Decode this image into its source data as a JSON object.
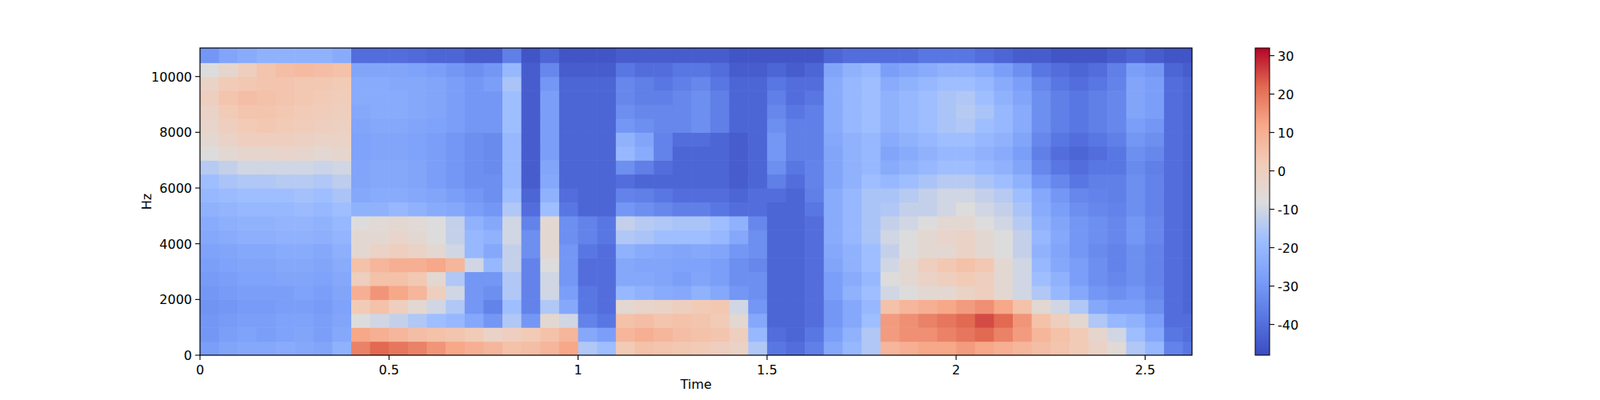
{
  "chart_data": {
    "type": "heatmap",
    "x_label": "Time",
    "y_label": "Hz",
    "color": "coolwarm",
    "xlim": [
      0,
      2.624
    ],
    "ylim": [
      0,
      11025
    ],
    "xticks": [
      0,
      0.5,
      1,
      1.5,
      2,
      2.5
    ],
    "yticks": [
      0,
      2000,
      4000,
      6000,
      8000,
      10000
    ],
    "colorbar_range": [
      -48,
      32
    ],
    "colorbar_ticks": [
      -40,
      -30,
      -20,
      -10,
      0,
      10,
      20,
      30
    ],
    "x_edges": [
      0,
      0.05,
      0.1,
      0.15,
      0.2,
      0.25,
      0.3,
      0.35,
      0.4,
      0.45,
      0.5,
      0.55,
      0.6,
      0.65,
      0.7,
      0.75,
      0.8,
      0.85,
      0.9,
      0.95,
      1,
      1.05,
      1.1,
      1.15,
      1.2,
      1.25,
      1.3,
      1.35,
      1.4,
      1.45,
      1.5,
      1.55,
      1.6,
      1.65,
      1.7,
      1.75,
      1.8,
      1.85,
      1.9,
      1.95,
      2,
      2.05,
      2.1,
      2.15,
      2.2,
      2.25,
      2.3,
      2.35,
      2.4,
      2.45,
      2.5,
      2.55,
      2.6,
      2.624
    ],
    "y_edges": [
      0,
      500,
      1000,
      1500,
      2000,
      2500,
      3000,
      3500,
      4000,
      4500,
      5000,
      5500,
      6000,
      6500,
      7000,
      7500,
      8000,
      8500,
      9000,
      9500,
      10000,
      10500,
      11025
    ],
    "values": [
      [
        -28,
        -26,
        -25,
        -25,
        -24,
        -25,
        -26,
        -22,
        18,
        22,
        20,
        18,
        15,
        12,
        10,
        8,
        5,
        6,
        8,
        12,
        -15,
        -18,
        2,
        5,
        4,
        3,
        2,
        0,
        -2,
        -15,
        -38,
        -40,
        -36,
        -25,
        -20,
        -15,
        8,
        10,
        12,
        12,
        14,
        12,
        10,
        8,
        6,
        4,
        2,
        -2,
        -6,
        -15,
        -20,
        -35,
        -38
      ],
      [
        -30,
        -28,
        -27,
        -28,
        -27,
        -26,
        -28,
        -25,
        12,
        10,
        8,
        6,
        5,
        4,
        2,
        -2,
        0,
        2,
        5,
        8,
        -25,
        -28,
        8,
        10,
        8,
        6,
        5,
        4,
        0,
        -20,
        -40,
        -42,
        -38,
        -28,
        -22,
        -15,
        14,
        16,
        16,
        18,
        20,
        22,
        18,
        14,
        8,
        5,
        2,
        -4,
        -10,
        -18,
        -25,
        -38,
        -40
      ],
      [
        -30,
        -29,
        -28,
        -28,
        -27,
        -27,
        -28,
        -26,
        -8,
        -10,
        -12,
        -15,
        -18,
        -20,
        -25,
        -30,
        -15,
        -30,
        -5,
        -10,
        -35,
        -38,
        5,
        6,
        4,
        5,
        4,
        2,
        -5,
        -25,
        -42,
        -42,
        -40,
        -30,
        -25,
        -18,
        14,
        16,
        18,
        20,
        22,
        25,
        22,
        15,
        5,
        0,
        -5,
        -15,
        -20,
        -22,
        -28,
        -40,
        -40
      ],
      [
        -31,
        -30,
        -29,
        -29,
        -28,
        -28,
        -29,
        -27,
        2,
        5,
        0,
        -5,
        -10,
        -15,
        -30,
        -35,
        -18,
        -35,
        -15,
        -25,
        -38,
        -40,
        -5,
        -3,
        -2,
        0,
        2,
        3,
        -10,
        -30,
        -42,
        -42,
        -40,
        -30,
        -25,
        -20,
        5,
        8,
        10,
        12,
        14,
        16,
        12,
        5,
        -5,
        -10,
        -15,
        -25,
        -28,
        -28,
        -32,
        -40,
        -42
      ],
      [
        -30,
        -29,
        -28,
        -28,
        -28,
        -27,
        -28,
        -26,
        10,
        15,
        12,
        8,
        0,
        -10,
        -30,
        -32,
        -15,
        -35,
        -10,
        -28,
        -38,
        -40,
        -20,
        -22,
        -24,
        -25,
        -22,
        -25,
        -30,
        -32,
        -42,
        -42,
        -40,
        -28,
        -22,
        -18,
        -10,
        -8,
        -5,
        -5,
        -2,
        0,
        -5,
        -10,
        -15,
        -20,
        -25,
        -30,
        -32,
        -30,
        -34,
        -40,
        -42
      ],
      [
        -29,
        -28,
        -27,
        -27,
        -26,
        -26,
        -27,
        -25,
        0,
        5,
        5,
        3,
        -5,
        -15,
        -30,
        -30,
        -15,
        -35,
        -10,
        -30,
        -40,
        -40,
        -25,
        -25,
        -26,
        -28,
        -26,
        -28,
        -32,
        -32,
        -42,
        -42,
        -40,
        -28,
        -24,
        -20,
        -8,
        -5,
        -2,
        0,
        2,
        0,
        -5,
        -10,
        -18,
        -22,
        -28,
        -32,
        -34,
        -32,
        -35,
        -40,
        -42
      ],
      [
        -28,
        -27,
        -26,
        -26,
        -25,
        -25,
        -26,
        -24,
        5,
        8,
        10,
        10,
        12,
        8,
        -10,
        -20,
        -12,
        -35,
        -8,
        -30,
        -40,
        -40,
        -25,
        -26,
        -26,
        -27,
        -27,
        -28,
        -32,
        -34,
        -42,
        -42,
        -40,
        -26,
        -22,
        -18,
        -10,
        -5,
        0,
        3,
        5,
        3,
        -5,
        -10,
        -20,
        -25,
        -28,
        -32,
        -35,
        -32,
        -35,
        -40,
        -42
      ],
      [
        -27,
        -26,
        -25,
        -25,
        -24,
        -24,
        -25,
        -23,
        -5,
        -2,
        0,
        -2,
        -5,
        -10,
        -20,
        -25,
        -12,
        -32,
        -5,
        -30,
        -38,
        -40,
        -22,
        -24,
        -25,
        -26,
        -25,
        -26,
        -30,
        -32,
        -42,
        -42,
        -40,
        -25,
        -22,
        -18,
        -12,
        -8,
        -5,
        -5,
        -2,
        -5,
        -8,
        -12,
        -22,
        -26,
        -30,
        -33,
        -35,
        -32,
        -35,
        -40,
        -42
      ],
      [
        -25,
        -24,
        -23,
        -23,
        -22,
        -22,
        -23,
        -21,
        -5,
        -5,
        -3,
        -5,
        -8,
        -12,
        -20,
        -22,
        -10,
        -32,
        -5,
        -32,
        -35,
        -38,
        -15,
        -16,
        -18,
        -18,
        -18,
        -20,
        -25,
        -32,
        -42,
        -42,
        -40,
        -24,
        -20,
        -16,
        -10,
        -8,
        -5,
        -3,
        -2,
        -5,
        -8,
        -12,
        -20,
        -25,
        -30,
        -32,
        -34,
        -30,
        -34,
        -40,
        -42
      ],
      [
        -24,
        -23,
        -22,
        -22,
        -21,
        -21,
        -22,
        -20,
        -8,
        -6,
        -5,
        -6,
        -8,
        -12,
        -22,
        -25,
        -10,
        -35,
        -5,
        -32,
        -35,
        -38,
        -12,
        -14,
        -15,
        -16,
        -16,
        -18,
        -22,
        -34,
        -42,
        -42,
        -40,
        -24,
        -20,
        -16,
        -12,
        -10,
        -8,
        -5,
        -5,
        -8,
        -10,
        -14,
        -22,
        -26,
        -30,
        -32,
        -34,
        -30,
        -34,
        -40,
        -42
      ],
      [
        -22,
        -21,
        -20,
        -20,
        -20,
        -19,
        -20,
        -18,
        -22,
        -22,
        -20,
        -22,
        -24,
        -25,
        -28,
        -30,
        -15,
        -40,
        -18,
        -38,
        -42,
        -42,
        -30,
        -32,
        -34,
        -36,
        -36,
        -38,
        -40,
        -40,
        -42,
        -42,
        -38,
        -24,
        -20,
        -16,
        -15,
        -12,
        -12,
        -10,
        -8,
        -10,
        -12,
        -16,
        -24,
        -28,
        -32,
        -34,
        -35,
        -32,
        -35,
        -40,
        -42
      ],
      [
        -20,
        -19,
        -18,
        -18,
        -18,
        -17,
        -18,
        -16,
        -25,
        -24,
        -24,
        -25,
        -26,
        -28,
        -30,
        -32,
        -18,
        -42,
        -22,
        -40,
        -42,
        -42,
        -35,
        -36,
        -38,
        -40,
        -40,
        -40,
        -42,
        -40,
        -40,
        -42,
        -36,
        -24,
        -20,
        -16,
        -16,
        -14,
        -12,
        -10,
        -10,
        -12,
        -14,
        -18,
        -25,
        -30,
        -34,
        -35,
        -36,
        -32,
        -35,
        -40,
        -42
      ],
      [
        -18,
        -16,
        -15,
        -15,
        -14,
        -14,
        -15,
        -13,
        -26,
        -25,
        -25,
        -26,
        -28,
        -30,
        -32,
        -32,
        -20,
        -44,
        -25,
        -42,
        -42,
        -42,
        -40,
        -42,
        -42,
        -42,
        -42,
        -42,
        -44,
        -42,
        -36,
        -40,
        -35,
        -26,
        -22,
        -18,
        -20,
        -18,
        -16,
        -14,
        -14,
        -16,
        -18,
        -22,
        -30,
        -34,
        -38,
        -36,
        -36,
        -32,
        -35,
        -40,
        -42
      ],
      [
        -14,
        -12,
        -10,
        -10,
        -10,
        -10,
        -11,
        -10,
        -26,
        -25,
        -25,
        -26,
        -28,
        -30,
        -32,
        -33,
        -20,
        -44,
        -26,
        -42,
        -42,
        -42,
        -32,
        -36,
        -40,
        -42,
        -42,
        -42,
        -44,
        -42,
        -32,
        -38,
        -35,
        -26,
        -22,
        -20,
        -24,
        -22,
        -20,
        -18,
        -18,
        -20,
        -22,
        -26,
        -34,
        -38,
        -40,
        -38,
        -38,
        -33,
        -36,
        -40,
        -42
      ],
      [
        -8,
        -5,
        -4,
        -4,
        -3,
        -4,
        -5,
        -4,
        -27,
        -26,
        -26,
        -27,
        -28,
        -30,
        -32,
        -33,
        -20,
        -44,
        -28,
        -42,
        -42,
        -42,
        -20,
        -24,
        -35,
        -42,
        -42,
        -42,
        -44,
        -42,
        -30,
        -36,
        -36,
        -26,
        -22,
        -20,
        -26,
        -24,
        -22,
        -20,
        -20,
        -22,
        -24,
        -28,
        -36,
        -40,
        -42,
        -40,
        -38,
        -32,
        -34,
        -40,
        -42
      ],
      [
        -5,
        -2,
        0,
        0,
        0,
        -1,
        -2,
        -2,
        -27,
        -26,
        -26,
        -27,
        -28,
        -30,
        -32,
        -33,
        -20,
        -44,
        -28,
        -42,
        -42,
        -42,
        -22,
        -26,
        -35,
        -40,
        -40,
        -42,
        -44,
        -42,
        -30,
        -36,
        -36,
        -25,
        -22,
        -20,
        -24,
        -22,
        -20,
        -18,
        -18,
        -20,
        -22,
        -26,
        -34,
        -38,
        -40,
        -38,
        -36,
        -30,
        -32,
        -40,
        -42
      ],
      [
        -3,
        0,
        2,
        3,
        2,
        1,
        0,
        -1,
        -26,
        -25,
        -25,
        -26,
        -27,
        -28,
        -30,
        -30,
        -18,
        -44,
        -28,
        -42,
        -42,
        -42,
        -30,
        -32,
        -34,
        -34,
        -32,
        -36,
        -42,
        -42,
        -32,
        -36,
        -36,
        -24,
        -20,
        -18,
        -22,
        -20,
        -18,
        -16,
        -15,
        -18,
        -20,
        -24,
        -32,
        -36,
        -38,
        -36,
        -34,
        -28,
        -30,
        -40,
        -42
      ],
      [
        -2,
        2,
        4,
        4,
        3,
        2,
        1,
        0,
        -25,
        -24,
        -24,
        -25,
        -26,
        -28,
        -30,
        -30,
        -18,
        -44,
        -28,
        -42,
        -42,
        -42,
        -32,
        -34,
        -34,
        -34,
        -32,
        -36,
        -42,
        -42,
        -34,
        -38,
        -36,
        -24,
        -20,
        -18,
        -22,
        -20,
        -18,
        -16,
        -14,
        -16,
        -20,
        -24,
        -32,
        -36,
        -38,
        -36,
        -34,
        -26,
        -28,
        -40,
        -42
      ],
      [
        0,
        4,
        6,
        5,
        4,
        3,
        2,
        1,
        -24,
        -24,
        -24,
        -25,
        -26,
        -28,
        -30,
        -30,
        -18,
        -44,
        -28,
        -42,
        -42,
        -42,
        -34,
        -36,
        -36,
        -34,
        -32,
        -36,
        -42,
        -42,
        -36,
        -40,
        -38,
        -24,
        -20,
        -18,
        -22,
        -20,
        -18,
        -16,
        -15,
        -18,
        -22,
        -26,
        -32,
        -36,
        -38,
        -36,
        -34,
        -26,
        -28,
        -40,
        -42
      ],
      [
        -2,
        2,
        3,
        4,
        4,
        3,
        3,
        2,
        -24,
        -24,
        -25,
        -25,
        -26,
        -28,
        -30,
        -28,
        -16,
        -44,
        -30,
        -42,
        -42,
        -42,
        -34,
        -36,
        -38,
        -36,
        -34,
        -38,
        -42,
        -42,
        -38,
        -40,
        -40,
        -24,
        -20,
        -18,
        -24,
        -22,
        -20,
        -18,
        -18,
        -20,
        -24,
        -28,
        -34,
        -38,
        -40,
        -38,
        -35,
        -26,
        -28,
        -40,
        -42
      ],
      [
        -8,
        -4,
        0,
        4,
        6,
        7,
        6,
        5,
        -26,
        -26,
        -26,
        -27,
        -28,
        -30,
        -32,
        -30,
        -20,
        -44,
        -34,
        -44,
        -44,
        -44,
        -38,
        -40,
        -40,
        -38,
        -38,
        -40,
        -44,
        -44,
        -42,
        -44,
        -42,
        -26,
        -22,
        -20,
        -28,
        -26,
        -24,
        -22,
        -22,
        -24,
        -28,
        -32,
        -38,
        -40,
        -42,
        -40,
        -36,
        -28,
        -30,
        -42,
        -44
      ],
      [
        -30,
        -26,
        -24,
        -22,
        -22,
        -22,
        -22,
        -24,
        -40,
        -40,
        -40,
        -41,
        -42,
        -42,
        -44,
        -44,
        -36,
        -46,
        -42,
        -46,
        -46,
        -46,
        -44,
        -44,
        -44,
        -44,
        -44,
        -44,
        -46,
        -46,
        -46,
        -46,
        -46,
        -42,
        -40,
        -40,
        -40,
        -40,
        -38,
        -38,
        -38,
        -40,
        -42,
        -44,
        -44,
        -46,
        -46,
        -46,
        -44,
        -42,
        -44,
        -46,
        -46
      ]
    ]
  }
}
